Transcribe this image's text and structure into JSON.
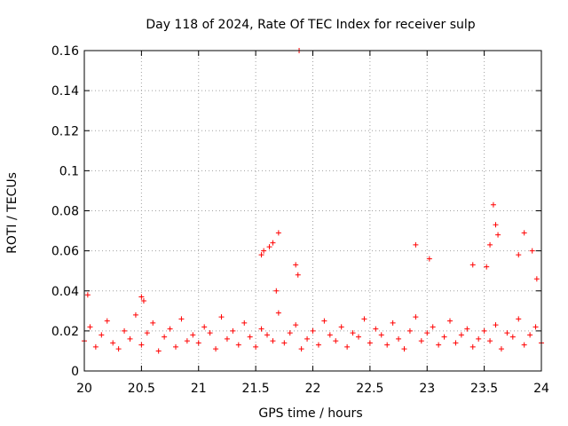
{
  "chart_data": {
    "type": "scatter",
    "title": "Day 118 of 2024, Rate Of TEC Index for receiver sulp",
    "xlabel": "GPS time / hours",
    "ylabel": "ROTI / TECUs",
    "xlim": [
      20,
      24
    ],
    "ylim": [
      0,
      0.16
    ],
    "grid": true,
    "marker": "+",
    "color": "#ff0000",
    "x_ticks": [
      "20",
      "20.5",
      "21",
      "21.5",
      "22",
      "22.5",
      "23",
      "23.5",
      "24"
    ],
    "y_ticks": [
      "0",
      "0.02",
      "0.04",
      "0.06",
      "0.08",
      "0.1",
      "0.12",
      "0.14",
      "0.16"
    ],
    "series": [
      {
        "name": "ROTI",
        "x": [
          20.0,
          20.05,
          20.1,
          20.15,
          20.2,
          20.25,
          20.3,
          20.35,
          20.4,
          20.45,
          20.5,
          20.55,
          20.6,
          20.65,
          20.7,
          20.75,
          20.8,
          20.85,
          20.9,
          20.95,
          21.0,
          21.05,
          21.1,
          21.15,
          21.2,
          21.25,
          21.3,
          21.35,
          21.4,
          21.45,
          21.5,
          21.55,
          21.6,
          21.65,
          21.7,
          21.75,
          21.8,
          21.85,
          21.9,
          21.95,
          22.0,
          22.05,
          22.1,
          22.15,
          22.2,
          22.25,
          22.3,
          22.35,
          22.4,
          22.45,
          22.5,
          22.55,
          22.6,
          22.65,
          22.7,
          22.75,
          22.8,
          22.85,
          22.9,
          22.95,
          23.0,
          23.05,
          23.1,
          23.15,
          23.2,
          23.25,
          23.3,
          23.35,
          23.4,
          23.45,
          23.5,
          23.55,
          23.6,
          23.65,
          23.7,
          23.75,
          23.8,
          23.85,
          23.9,
          23.95,
          24.0,
          20.03,
          20.5,
          20.52,
          21.55,
          21.57,
          21.62,
          21.65,
          21.68,
          21.7,
          21.85,
          21.87,
          22.9,
          23.02,
          23.4,
          23.52,
          23.55,
          23.58,
          23.6,
          23.62,
          23.8,
          23.85,
          23.92,
          23.96,
          21.88
        ],
        "y": [
          0.015,
          0.022,
          0.012,
          0.018,
          0.025,
          0.014,
          0.011,
          0.02,
          0.016,
          0.028,
          0.013,
          0.019,
          0.024,
          0.01,
          0.017,
          0.021,
          0.012,
          0.026,
          0.015,
          0.018,
          0.014,
          0.022,
          0.019,
          0.011,
          0.027,
          0.016,
          0.02,
          0.013,
          0.024,
          0.017,
          0.012,
          0.021,
          0.018,
          0.015,
          0.029,
          0.014,
          0.019,
          0.023,
          0.011,
          0.016,
          0.02,
          0.013,
          0.025,
          0.018,
          0.015,
          0.022,
          0.012,
          0.019,
          0.017,
          0.026,
          0.014,
          0.021,
          0.018,
          0.013,
          0.024,
          0.016,
          0.011,
          0.02,
          0.027,
          0.015,
          0.019,
          0.022,
          0.013,
          0.017,
          0.025,
          0.014,
          0.018,
          0.021,
          0.012,
          0.016,
          0.02,
          0.015,
          0.023,
          0.011,
          0.019,
          0.017,
          0.026,
          0.013,
          0.018,
          0.022,
          0.014,
          0.038,
          0.037,
          0.035,
          0.058,
          0.06,
          0.062,
          0.064,
          0.04,
          0.069,
          0.053,
          0.048,
          0.063,
          0.056,
          0.053,
          0.052,
          0.063,
          0.083,
          0.073,
          0.068,
          0.058,
          0.069,
          0.06,
          0.046,
          0.16
        ]
      }
    ]
  }
}
